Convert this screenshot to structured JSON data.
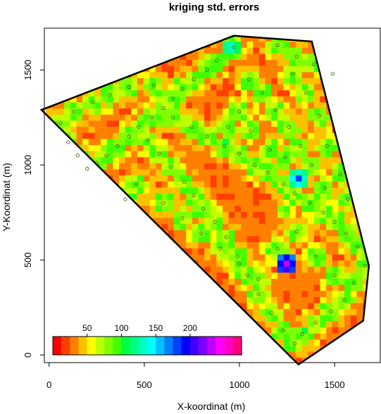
{
  "chart_data": {
    "type": "heatmap",
    "title": "kriging std. errors",
    "xlabel": "X-koordinat (m)",
    "ylabel": "Y-Koordinat (m)",
    "xlim": [
      -25,
      1740
    ],
    "ylim": [
      -40,
      1720
    ],
    "x_ticks": [
      0,
      500,
      1000,
      1500
    ],
    "y_ticks": [
      0,
      500,
      1000,
      1500
    ],
    "grid": false,
    "boundary_polygon": [
      [
        -40,
        1290
      ],
      [
        970,
        1680
      ],
      [
        1380,
        1650
      ],
      [
        1680,
        470
      ],
      [
        1650,
        180
      ],
      [
        1310,
        -50
      ],
      [
        -40,
        1290
      ]
    ],
    "hotspots_low_error": [
      {
        "x": 955,
        "y": 1620,
        "value": 160
      },
      {
        "x": 1310,
        "y": 930,
        "value": 180
      },
      {
        "x": 1250,
        "y": 480,
        "value": 240
      },
      {
        "x": 1240,
        "y": 760,
        "value": 115
      }
    ],
    "sample_points": [
      [
        970,
        1620
      ],
      [
        1200,
        1630
      ],
      [
        1300,
        1570
      ],
      [
        1390,
        1530
      ],
      [
        1490,
        1480
      ],
      [
        880,
        1550
      ],
      [
        830,
        1500
      ],
      [
        760,
        1450
      ],
      [
        700,
        1400
      ],
      [
        650,
        1350
      ],
      [
        600,
        1300
      ],
      [
        540,
        1250
      ],
      [
        470,
        1200
      ],
      [
        420,
        1150
      ],
      [
        360,
        1100
      ],
      [
        300,
        1050
      ],
      [
        250,
        1010
      ],
      [
        200,
        980
      ],
      [
        150,
        1050
      ],
      [
        100,
        1120
      ],
      [
        60,
        1220
      ],
      [
        130,
        1280
      ],
      [
        230,
        1330
      ],
      [
        320,
        1370
      ],
      [
        420,
        1410
      ],
      [
        550,
        1420
      ],
      [
        650,
        1250
      ],
      [
        750,
        1200
      ],
      [
        830,
        1150
      ],
      [
        920,
        1100
      ],
      [
        1000,
        1060
      ],
      [
        1080,
        1000
      ],
      [
        1150,
        960
      ],
      [
        1230,
        900
      ],
      [
        1290,
        850
      ],
      [
        1370,
        800
      ],
      [
        1440,
        750
      ],
      [
        1500,
        700
      ],
      [
        1560,
        640
      ],
      [
        1620,
        570
      ],
      [
        1660,
        470
      ],
      [
        1600,
        380
      ],
      [
        1550,
        290
      ],
      [
        1480,
        230
      ],
      [
        1400,
        170
      ],
      [
        1330,
        110
      ],
      [
        1290,
        60
      ],
      [
        1230,
        130
      ],
      [
        1170,
        220
      ],
      [
        1100,
        320
      ],
      [
        1040,
        420
      ],
      [
        990,
        520
      ],
      [
        930,
        620
      ],
      [
        870,
        700
      ],
      [
        810,
        770
      ],
      [
        760,
        840
      ],
      [
        710,
        910
      ],
      [
        640,
        990
      ],
      [
        580,
        1060
      ],
      [
        520,
        1130
      ],
      [
        460,
        900
      ],
      [
        400,
        820
      ],
      [
        600,
        800
      ],
      [
        700,
        720
      ],
      [
        800,
        640
      ],
      [
        900,
        560
      ],
      [
        1000,
        480
      ],
      [
        1100,
        400
      ],
      [
        1200,
        560
      ],
      [
        1300,
        650
      ],
      [
        1400,
        520
      ],
      [
        1500,
        420
      ],
      [
        1450,
        880
      ],
      [
        1380,
        1000
      ],
      [
        1320,
        1100
      ],
      [
        1260,
        1200
      ],
      [
        1190,
        1290
      ],
      [
        1120,
        1380
      ],
      [
        1050,
        1450
      ],
      [
        1000,
        1280
      ],
      [
        940,
        1200
      ],
      [
        1060,
        1180
      ],
      [
        1160,
        1080
      ],
      [
        1240,
        1040
      ],
      [
        1420,
        1260
      ],
      [
        1460,
        1100
      ],
      [
        1530,
        950
      ],
      [
        1570,
        820
      ],
      [
        1350,
        1380
      ],
      [
        1280,
        1480
      ]
    ],
    "legend": {
      "placement": "bottom-left",
      "colors": [
        "#ff0000",
        "#ff4000",
        "#ff8000",
        "#ffc000",
        "#ffff00",
        "#c0ff00",
        "#80ff00",
        "#40ff00",
        "#00ff40",
        "#00ff80",
        "#00ffc0",
        "#00ffff",
        "#00c0ff",
        "#0080ff",
        "#0040ff",
        "#0000ff",
        "#4000ff",
        "#8000ff",
        "#c000ff",
        "#ff00ff",
        "#ff00c0",
        "#ff0080"
      ],
      "tick_labels": [
        "50",
        "100",
        "150",
        "200"
      ],
      "tick_values": [
        50,
        100,
        150,
        200
      ],
      "range": [
        0,
        275
      ]
    }
  }
}
